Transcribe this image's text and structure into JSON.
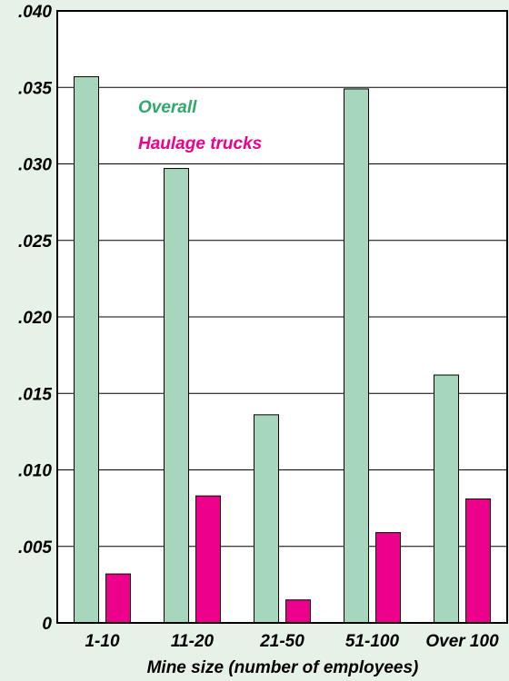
{
  "chart_data": {
    "type": "bar",
    "categories": [
      "1-10",
      "11-20",
      "21-50",
      "51-100",
      "Over 100"
    ],
    "series": [
      {
        "name": "Overall",
        "color": "#a6d6bb",
        "values": [
          0.0357,
          0.0297,
          0.0136,
          0.0349,
          0.0162
        ]
      },
      {
        "name": "Haulage trucks",
        "color": "#ec008c",
        "values": [
          0.0032,
          0.0083,
          0.0015,
          0.0059,
          0.0081
        ]
      }
    ],
    "y_tick_labels": [
      "0",
      ".005",
      ".010",
      ".015",
      ".020",
      ".025",
      ".030",
      ".035",
      ".040"
    ],
    "y_tick_values": [
      0,
      0.005,
      0.01,
      0.015,
      0.02,
      0.025,
      0.03,
      0.035,
      0.04
    ],
    "ylim": [
      0,
      0.04
    ],
    "xlabel": "Mine size (number of employees)",
    "ylabel": "",
    "title": "",
    "grid": true,
    "legend_position": "top-left inside plot",
    "background_color": "#e6f1e7",
    "plot_background_color": "#ffffff"
  }
}
